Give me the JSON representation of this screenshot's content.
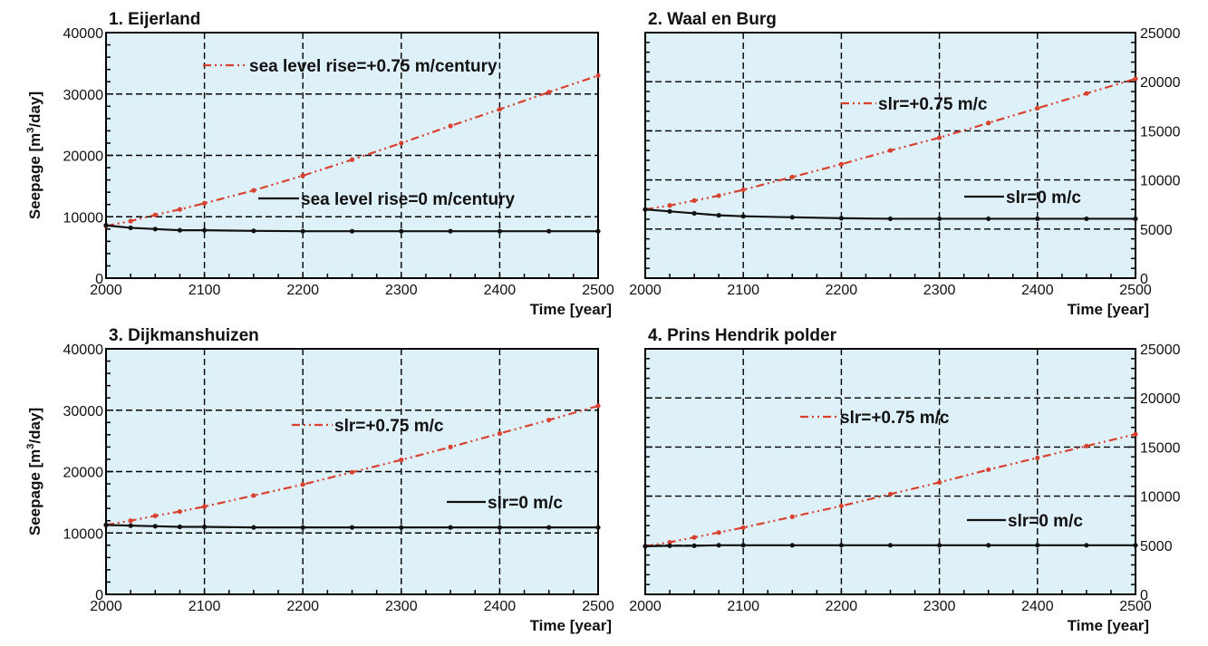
{
  "colors": {
    "plot_background": "#dff1f8",
    "grid": "#000000",
    "slr_series": "#d9402e",
    "baseline_series": "#111111",
    "text": "#111111"
  },
  "chart_data": [
    {
      "type": "line",
      "title": "1. Eijerland",
      "xlabel": "Time [year]",
      "ylabel": "Seepage [m³/day]",
      "xlim": [
        2000,
        2500
      ],
      "ylim": [
        0,
        40000
      ],
      "x_ticks": [
        2000,
        2100,
        2200,
        2300,
        2400,
        2500
      ],
      "y_ticks": [
        0,
        10000,
        20000,
        30000,
        40000
      ],
      "y_axis_side": "left",
      "grid": true,
      "legend_placement": "inline",
      "series": [
        {
          "name": "sea level rise=+0.75 m/century",
          "line_style": "dash-dot-dot",
          "color": "#d9402e",
          "x": [
            2000,
            2025,
            2050,
            2075,
            2100,
            2150,
            2200,
            2250,
            2300,
            2350,
            2400,
            2450,
            2500
          ],
          "y": [
            8500,
            9300,
            10300,
            11200,
            12200,
            14300,
            16700,
            19300,
            22000,
            24800,
            27500,
            30300,
            33000
          ]
        },
        {
          "name": "sea level rise=0 m/century",
          "line_style": "solid",
          "color": "#111111",
          "x": [
            2000,
            2025,
            2050,
            2075,
            2100,
            2150,
            2200,
            2250,
            2300,
            2350,
            2400,
            2450,
            2500
          ],
          "y": [
            8600,
            8200,
            8000,
            7800,
            7800,
            7700,
            7650,
            7650,
            7650,
            7650,
            7650,
            7650,
            7650
          ]
        }
      ]
    },
    {
      "type": "line",
      "title": "2. Waal en Burg",
      "xlabel": "Time [year]",
      "ylabel": "",
      "xlim": [
        2000,
        2500
      ],
      "ylim": [
        0,
        25000
      ],
      "x_ticks": [
        2000,
        2100,
        2200,
        2300,
        2400,
        2500
      ],
      "y_ticks": [
        0,
        5000,
        10000,
        15000,
        20000,
        25000
      ],
      "y_axis_side": "right",
      "grid": true,
      "legend_placement": "inline",
      "series": [
        {
          "name": "slr=+0.75 m/c",
          "line_style": "dash-dot-dot",
          "color": "#d9402e",
          "x": [
            2000,
            2025,
            2050,
            2075,
            2100,
            2150,
            2200,
            2250,
            2300,
            2350,
            2400,
            2450,
            2500
          ],
          "y": [
            7000,
            7400,
            7900,
            8400,
            9000,
            10300,
            11600,
            13000,
            14300,
            15800,
            17300,
            18800,
            20300
          ]
        },
        {
          "name": "slr=0 m/c",
          "line_style": "solid",
          "color": "#111111",
          "x": [
            2000,
            2025,
            2050,
            2075,
            2100,
            2150,
            2200,
            2250,
            2300,
            2350,
            2400,
            2450,
            2500
          ],
          "y": [
            7000,
            6800,
            6600,
            6400,
            6300,
            6200,
            6100,
            6050,
            6050,
            6050,
            6050,
            6050,
            6050
          ]
        }
      ]
    },
    {
      "type": "line",
      "title": "3. Dijkmanshuizen",
      "xlabel": "Time [year]",
      "ylabel": "Seepage [m³/day]",
      "xlim": [
        2000,
        2500
      ],
      "ylim": [
        0,
        40000
      ],
      "x_ticks": [
        2000,
        2100,
        2200,
        2300,
        2400,
        2500
      ],
      "y_ticks": [
        0,
        10000,
        20000,
        30000,
        40000
      ],
      "y_axis_side": "left",
      "grid": true,
      "legend_placement": "inline",
      "series": [
        {
          "name": "slr=+0.75 m/c",
          "line_style": "dash-dot-dot",
          "color": "#d9402e",
          "x": [
            2000,
            2025,
            2050,
            2075,
            2100,
            2150,
            2200,
            2250,
            2300,
            2350,
            2400,
            2450,
            2500
          ],
          "y": [
            11300,
            12000,
            12800,
            13500,
            14300,
            16100,
            17900,
            19900,
            21900,
            24000,
            26200,
            28400,
            30700
          ]
        },
        {
          "name": "slr=0 m/c",
          "line_style": "solid",
          "color": "#111111",
          "x": [
            2000,
            2025,
            2050,
            2075,
            2100,
            2150,
            2200,
            2250,
            2300,
            2350,
            2400,
            2450,
            2500
          ],
          "y": [
            11300,
            11200,
            11100,
            11000,
            11000,
            10900,
            10900,
            10900,
            10900,
            10900,
            10900,
            10900,
            10900
          ]
        }
      ]
    },
    {
      "type": "line",
      "title": "4. Prins Hendrik polder",
      "xlabel": "Time [year]",
      "ylabel": "",
      "xlim": [
        2000,
        2500
      ],
      "ylim": [
        0,
        25000
      ],
      "x_ticks": [
        2000,
        2100,
        2200,
        2300,
        2400,
        2500
      ],
      "y_ticks": [
        0,
        5000,
        10000,
        15000,
        20000,
        25000
      ],
      "y_axis_side": "right",
      "grid": true,
      "legend_placement": "inline",
      "series": [
        {
          "name": "slr=+0.75 m/c",
          "line_style": "dash-dot-dot",
          "color": "#d9402e",
          "x": [
            2000,
            2025,
            2050,
            2075,
            2100,
            2150,
            2200,
            2250,
            2300,
            2350,
            2400,
            2450,
            2500
          ],
          "y": [
            4900,
            5300,
            5800,
            6300,
            6800,
            7900,
            9000,
            10200,
            11400,
            12700,
            13900,
            15100,
            16300
          ]
        },
        {
          "name": "slr=0 m/c",
          "line_style": "solid",
          "color": "#111111",
          "x": [
            2000,
            2025,
            2050,
            2075,
            2100,
            2150,
            2200,
            2250,
            2300,
            2350,
            2400,
            2450,
            2500
          ],
          "y": [
            4900,
            4950,
            4950,
            5000,
            5000,
            5000,
            5000,
            5000,
            5000,
            5000,
            5000,
            5000,
            5000
          ]
        }
      ]
    }
  ]
}
